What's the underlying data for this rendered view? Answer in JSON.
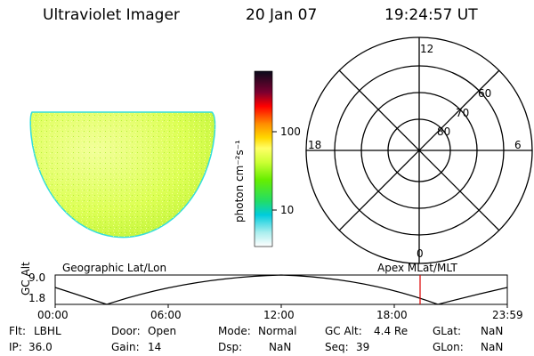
{
  "header": {
    "instrument": "Ultraviolet Imager",
    "date": "20 Jan 07",
    "time": "19:24:57 UT"
  },
  "colorbar": {
    "unit_label": "photon cm⁻²s⁻¹",
    "tick_labels": [
      "100",
      "10"
    ],
    "scale": "log",
    "colors": [
      "#0a0a1a",
      "#7a0030",
      "#ff0000",
      "#ff8c00",
      "#ffd800",
      "#ffff66",
      "#ccff33",
      "#66ee00",
      "#22dd66",
      "#00ccdd",
      "#ffffff"
    ]
  },
  "polar_plot": {
    "mlt_labels": {
      "top": "12",
      "left": "18",
      "right": "6",
      "bottom": "0"
    },
    "lat_labels": [
      "60",
      "70",
      "80"
    ]
  },
  "timeline": {
    "left_title": "Geographic Lat/Lon",
    "right_title": "Apex MLat/MLT",
    "y_axis_title": "GC Alt",
    "y_ticks": [
      "9.0",
      "1.8"
    ],
    "x_ticks": [
      "00:00",
      "06:00",
      "12:00",
      "18:00",
      "23:59"
    ],
    "current_time_marker_color": "#dd0000"
  },
  "info": {
    "row1": [
      {
        "label": "Flt:",
        "value": "LBHL"
      },
      {
        "label": "Door:",
        "value": "Open"
      },
      {
        "label": "Mode:",
        "value": "Normal"
      },
      {
        "label": "GC Alt:",
        "value": "4.4 Re"
      },
      {
        "label": "GLat:",
        "value": "NaN"
      }
    ],
    "row2": [
      {
        "label": "IP:",
        "value": "36.0"
      },
      {
        "label": "Gain:",
        "value": "14"
      },
      {
        "label": "Dsp:",
        "value": "NaN"
      },
      {
        "label": "Seq:",
        "value": "39"
      },
      {
        "label": "GLon:",
        "value": "NaN"
      }
    ]
  }
}
